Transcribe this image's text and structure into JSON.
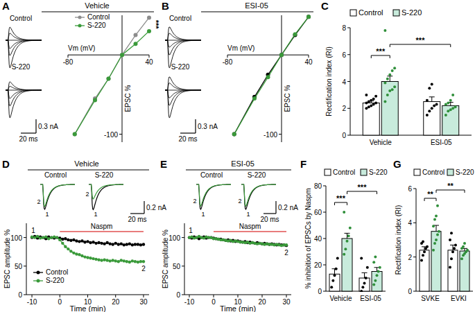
{
  "chart_data": [
    {
      "panel": "A",
      "type": "line",
      "title": "Vehicle",
      "x_label": "Vm (mV)",
      "y_label": "EPSC %",
      "xlim": [
        -80,
        40
      ],
      "xticks": [
        -80,
        40
      ],
      "ylim": [
        -110,
        50
      ],
      "yticks": [
        -100
      ],
      "x": [
        -70,
        -40,
        -20,
        0,
        20,
        40
      ],
      "series": [
        {
          "name": "Control",
          "color": "#8c8c8c",
          "values": [
            -100,
            -55,
            -30,
            0,
            25,
            47
          ]
        },
        {
          "name": "S-220",
          "color": "#3a9a3a",
          "values": [
            -100,
            -57,
            -30,
            0,
            14,
            30
          ]
        }
      ],
      "legend": "upper left",
      "marker": "circle",
      "annotations": [
        "***"
      ],
      "scale_bar": {
        "amplitude": "0.3 nA",
        "time": "20 ms"
      }
    },
    {
      "panel": "B",
      "type": "line",
      "title": "ESI-05",
      "x_label": "Vm (mV)",
      "y_label": "EPSC %",
      "xlim": [
        -80,
        40
      ],
      "xticks": [
        -80,
        40
      ],
      "ylim": [
        -110,
        50
      ],
      "yticks": [
        -100
      ],
      "x": [
        -70,
        -40,
        -20,
        0,
        20,
        40
      ],
      "series": [
        {
          "name": "Control",
          "color": "#000000",
          "values": [
            -100,
            -53,
            -25,
            0,
            25,
            48
          ]
        },
        {
          "name": "S-220",
          "color": "#3a9a3a",
          "values": [
            -100,
            -55,
            -28,
            0,
            26,
            48
          ]
        }
      ],
      "marker": "circle",
      "scale_bar": {
        "amplitude": "0.3 nA",
        "time": "20 ms"
      }
    },
    {
      "panel": "C",
      "type": "bar",
      "y_label": "Rectification index (RI)",
      "categories": [
        "Vehicle",
        "ESI-05"
      ],
      "ylim": [
        0,
        8
      ],
      "yticks": [
        0,
        2,
        4,
        6,
        8
      ],
      "series": [
        {
          "name": "Control",
          "color": "#ffffff",
          "values": [
            2.4,
            2.5
          ],
          "errors": [
            0.15,
            0.35
          ],
          "points": [
            [
              2.0,
              2.1,
              2.2,
              2.3,
              2.4,
              2.4,
              2.5,
              2.6,
              2.7,
              2.9,
              3.0
            ],
            [
              1.5,
              1.8,
              2.0,
              2.2,
              2.3,
              2.6,
              3.5,
              3.8
            ]
          ]
        },
        {
          "name": "S-220",
          "color": "#c8ebdc",
          "values": [
            4.0,
            2.2
          ],
          "errors": [
            0.4,
            0.25
          ],
          "points": [
            [
              2.5,
              3.0,
              3.3,
              3.4,
              3.6,
              3.9,
              4.2,
              4.5,
              4.8,
              5.0,
              7.8
            ],
            [
              1.5,
              1.8,
              1.9,
              2.0,
              2.1,
              2.3,
              2.4,
              2.6,
              3.0
            ]
          ]
        }
      ],
      "legend": "top",
      "annotations": [
        "***",
        "***"
      ]
    },
    {
      "panel": "D",
      "type": "line",
      "title": "Vehicle",
      "x_label": "Time (min)",
      "y_label": "EPSC amplitude %",
      "xlim": [
        -12,
        32
      ],
      "xticks": [
        -10,
        0,
        10,
        20,
        30
      ],
      "ylim": [
        0,
        125
      ],
      "yticks": [
        0,
        50,
        100
      ],
      "x": [
        -10,
        -9,
        -8,
        -7,
        -6,
        -5,
        -4,
        -3,
        -2,
        -1,
        0,
        1,
        2,
        3,
        4,
        5,
        6,
        7,
        8,
        9,
        10,
        11,
        12,
        13,
        14,
        15,
        16,
        17,
        18,
        19,
        20,
        21,
        22,
        23,
        24,
        25,
        26,
        27,
        28,
        29,
        30
      ],
      "series": [
        {
          "name": "Control",
          "color": "#000000",
          "values": [
            100,
            102,
            99,
            101,
            100,
            98,
            101,
            100,
            99,
            100,
            99,
            97,
            98,
            96,
            95,
            96,
            94,
            93,
            94,
            92,
            93,
            91,
            92,
            90,
            91,
            90,
            89,
            91,
            89,
            88,
            90,
            88,
            89,
            87,
            88,
            89,
            87,
            88,
            88,
            87,
            88
          ]
        },
        {
          "name": "S-220",
          "color": "#3a9a3a",
          "values": [
            101,
            100,
            102,
            99,
            100,
            101,
            98,
            100,
            101,
            100,
            96,
            90,
            84,
            80,
            76,
            73,
            71,
            70,
            68,
            66,
            65,
            64,
            63,
            62,
            61,
            60,
            61,
            60,
            59,
            60,
            59,
            58,
            60,
            59,
            58,
            57,
            59,
            58,
            57,
            58,
            58
          ]
        }
      ],
      "legend": "lower left",
      "marker": "circle",
      "drug": {
        "label": "Naspm",
        "x": [
          0,
          30
        ]
      },
      "sweep_labels": [
        "1",
        "2"
      ],
      "scale_bar": {
        "amplitude": "0.2 nA",
        "time": "20 ms"
      }
    },
    {
      "panel": "E",
      "type": "line",
      "title": "ESI-05",
      "x_label": "Time (min)",
      "y_label": "EPSC amplitude %",
      "xlim": [
        -12,
        32
      ],
      "xticks": [
        -10,
        0,
        10,
        20,
        30
      ],
      "ylim": [
        0,
        125
      ],
      "yticks": [
        0,
        50,
        100
      ],
      "x": [
        -10,
        -9,
        -8,
        -7,
        -6,
        -5,
        -4,
        -3,
        -2,
        -1,
        0,
        1,
        2,
        3,
        4,
        5,
        6,
        7,
        8,
        9,
        10,
        11,
        12,
        13,
        14,
        15,
        16,
        17,
        18,
        19,
        20,
        21,
        22,
        23,
        24,
        25,
        26,
        27,
        28,
        29,
        30
      ],
      "series": [
        {
          "name": "Control",
          "color": "#000000",
          "values": [
            100,
            99,
            101,
            100,
            98,
            100,
            101,
            99,
            100,
            100,
            99,
            98,
            97,
            97,
            96,
            95,
            96,
            94,
            95,
            93,
            94,
            93,
            92,
            93,
            91,
            92,
            91,
            90,
            91,
            90,
            89,
            90,
            89,
            88,
            89,
            88,
            87,
            88,
            87,
            87,
            86
          ]
        },
        {
          "name": "S-220",
          "color": "#3a9a3a",
          "values": [
            100,
            101,
            99,
            100,
            102,
            100,
            99,
            101,
            100,
            100,
            98,
            98,
            97,
            96,
            96,
            95,
            94,
            95,
            93,
            94,
            93,
            92,
            92,
            91,
            92,
            90,
            91,
            90,
            89,
            90,
            89,
            88,
            89,
            88,
            88,
            87,
            88,
            87,
            86,
            87,
            87
          ]
        }
      ],
      "marker": "circle",
      "drug": {
        "label": "Naspm",
        "x": [
          0,
          30
        ]
      },
      "sweep_labels": [
        "1",
        "2"
      ],
      "scale_bar": {
        "amplitude": "0.2 nA",
        "time": "20 ms"
      }
    },
    {
      "panel": "F",
      "type": "bar",
      "y_label": "% inhibition of EPSCs by Naspm",
      "categories": [
        "Vehicle",
        "ESI-05"
      ],
      "ylim": [
        0,
        80
      ],
      "yticks": [
        0,
        20,
        40,
        60,
        80
      ],
      "series": [
        {
          "name": "Control",
          "color": "#ffffff",
          "values": [
            13,
            10
          ],
          "errors": [
            4,
            4
          ],
          "points": [
            [
              3,
              8,
              12,
              17,
              25
            ],
            [
              0,
              3,
              6,
              10,
              18,
              25
            ]
          ]
        },
        {
          "name": "S-220",
          "color": "#c8ebdc",
          "values": [
            40,
            15
          ],
          "errors": [
            4,
            3
          ],
          "points": [
            [
              28,
              32,
              38,
              42,
              48,
              60
            ],
            [
              5,
              8,
              12,
              15,
              18,
              22,
              26
            ]
          ]
        }
      ],
      "legend": "top",
      "annotations": [
        "***",
        "***"
      ]
    },
    {
      "panel": "G",
      "type": "bar",
      "y_label": "Rectification index (RI)",
      "categories": [
        "SVKE",
        "EVKI"
      ],
      "ylim": [
        0,
        6
      ],
      "yticks": [
        0,
        2,
        4,
        6
      ],
      "series": [
        {
          "name": "Control",
          "color": "#ffffff",
          "values": [
            2.4,
            2.4
          ],
          "errors": [
            0.2,
            0.3
          ],
          "points": [
            [
              1.8,
              2.1,
              2.3,
              2.5,
              2.6,
              2.8,
              2.9
            ],
            [
              1.4,
              1.9,
              2.3,
              2.5,
              2.7,
              3.0,
              3.4
            ]
          ]
        },
        {
          "name": "S-220",
          "color": "#c8ebdc",
          "values": [
            3.5,
            2.35
          ],
          "errors": [
            0.35,
            0.15
          ],
          "points": [
            [
              2.4,
              2.8,
              3.0,
              3.3,
              3.5,
              3.8,
              4.2,
              4.4,
              5.0
            ],
            [
              1.9,
              2.1,
              2.2,
              2.3,
              2.4,
              2.5,
              2.6,
              2.8
            ]
          ]
        }
      ],
      "legend": "top",
      "annotations": [
        "**",
        "**"
      ]
    }
  ]
}
